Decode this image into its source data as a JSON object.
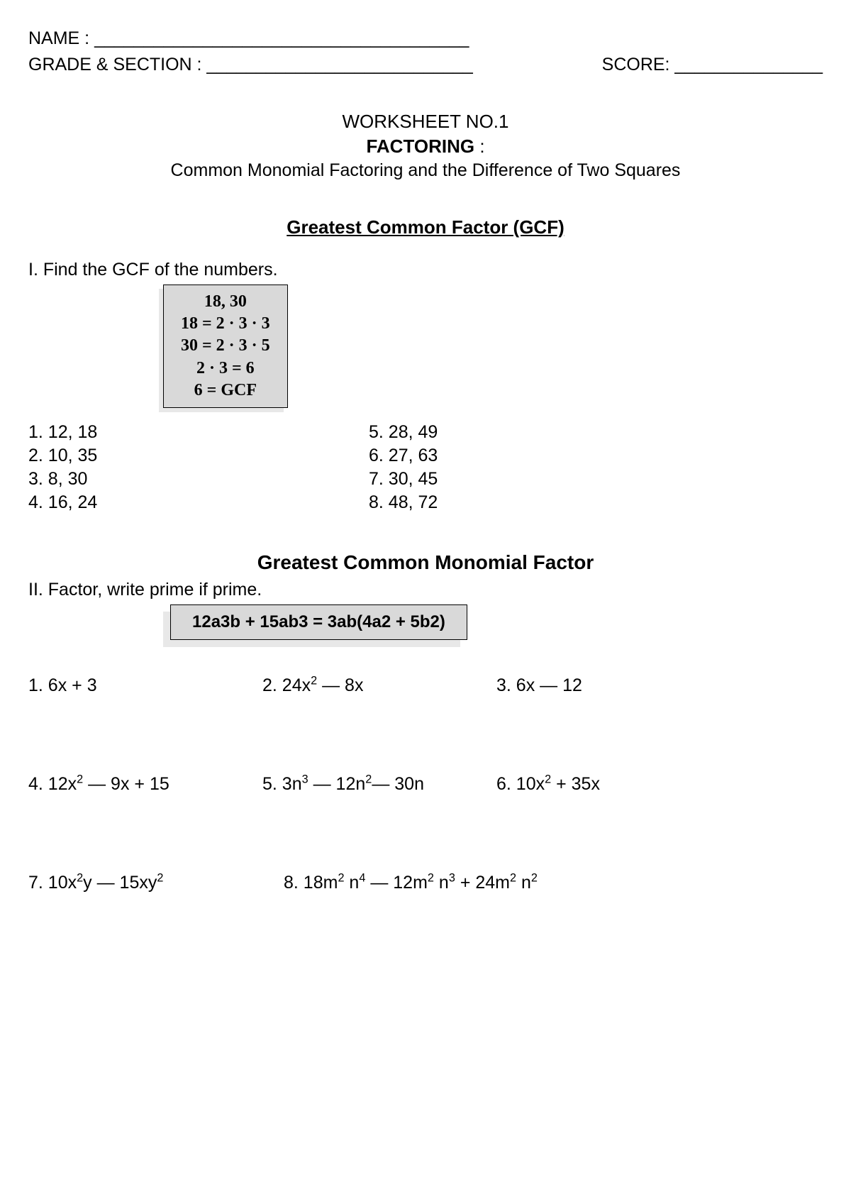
{
  "header": {
    "name_label": "NAME : ______________________________________",
    "grade_label": "GRADE & SECTION : ___________________________",
    "score_label": "SCORE: _______________"
  },
  "title": {
    "line1": "WORKSHEET NO.1",
    "line2_bold": "FACTORING",
    "line2_suffix": " :",
    "subtitle": "Common Monomial Factoring and the Difference of Two Squares"
  },
  "section1": {
    "heading": "Greatest Common Factor (GCF)",
    "instruction": "I. Find the GCF of the numbers.",
    "example_box": {
      "background_color": "#d9d9d9",
      "border_color": "#000000",
      "shadow_color": "#e8e8e8",
      "lines": [
        "18, 30",
        "18 = 2 · 3 · 3",
        "30 = 2 · 3 · 5",
        "2 · 3 = 6",
        "6 =  GCF"
      ]
    },
    "items_left": [
      "1. 12, 18",
      "2. 10, 35",
      "3. 8, 30",
      "4. 16, 24"
    ],
    "items_right": [
      "5.   28, 49",
      "6.   27, 63",
      "7.   30, 45",
      "8.   48, 72"
    ]
  },
  "section2": {
    "heading": "Greatest Common Monomial Factor",
    "instruction": "II. Factor, write prime if prime.",
    "example_box": {
      "text": "12a3b + 15ab3 = 3ab(4a2 + 5b2)",
      "background_color": "#d9d9d9",
      "border_color": "#000000",
      "shadow_color": "#e8e8e8"
    },
    "row1": {
      "c1": {
        "prefix": "1.     6x + 3"
      },
      "c2": {
        "prefix": "2. 24x",
        "sup1": "2",
        "suffix": " — 8x"
      },
      "c3": {
        "prefix": "3. 6x — 12"
      }
    },
    "row2": {
      "c1": {
        "prefix": "4. 12x",
        "sup1": "2",
        "suffix": " — 9x + 15"
      },
      "c2": {
        "prefix": "5. 3n",
        "sup1": "3",
        "mid": " — 12n",
        "sup2": "2",
        "suffix": "— 30n"
      },
      "c3": {
        "prefix": "6. 10x",
        "sup1": "2",
        "suffix": " + 35x"
      }
    },
    "row3": {
      "c1": {
        "prefix": "7. 10x",
        "sup1": "2",
        "mid": "y — 15xy",
        "sup2": "2"
      },
      "c2": {
        "prefix": "8.  18m",
        "sup1": "2",
        "mid1": " n",
        "sup2": "4",
        "mid2": " — 12m",
        "sup3": "2",
        "mid3": " n",
        "sup4": "3",
        "mid4": " + 24m",
        "sup5": "2",
        "mid5": " n",
        "sup6": "2"
      }
    }
  },
  "styling": {
    "page_bg": "#ffffff",
    "text_color": "#000000",
    "base_fontsize": 24
  }
}
